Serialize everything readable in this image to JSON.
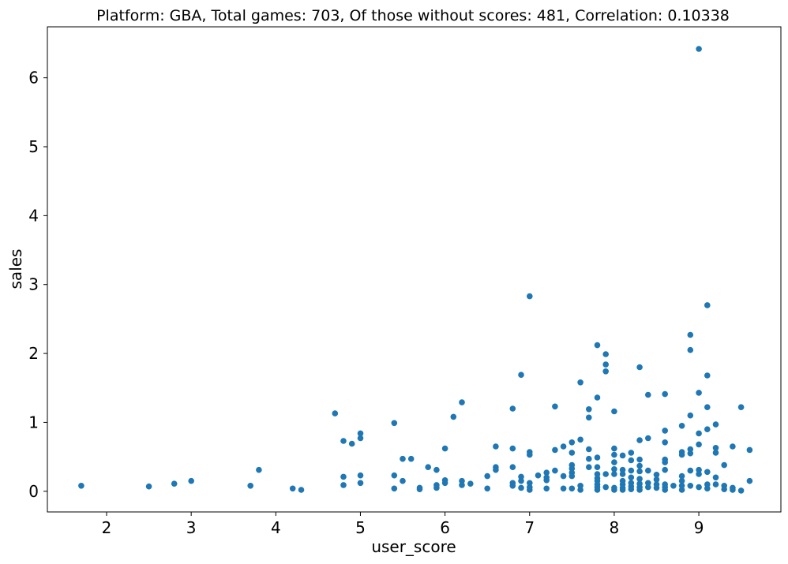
{
  "chart_data": {
    "type": "scatter",
    "title": "Platform: GBA, Total games: 703, Of those without scores: 481, Correlation: 0.10338",
    "xlabel": "user_score",
    "ylabel": "sales",
    "xlim": [
      1.3,
      9.97
    ],
    "ylim": [
      -0.3,
      6.74
    ],
    "xticks": [
      "2",
      "3",
      "4",
      "5",
      "6",
      "7",
      "8",
      "9"
    ],
    "yticks": [
      "0",
      "1",
      "2",
      "3",
      "4",
      "5",
      "6"
    ],
    "grid": false,
    "color": "#1f77b4",
    "points": [
      [
        1.7,
        0.08
      ],
      [
        2.5,
        0.07
      ],
      [
        2.8,
        0.11
      ],
      [
        3.0,
        0.15
      ],
      [
        3.7,
        0.08
      ],
      [
        3.8,
        0.31
      ],
      [
        4.2,
        0.04
      ],
      [
        4.3,
        0.02
      ],
      [
        4.7,
        1.13
      ],
      [
        4.8,
        0.73
      ],
      [
        4.8,
        0.21
      ],
      [
        4.8,
        0.09
      ],
      [
        4.9,
        0.69
      ],
      [
        5.0,
        0.84
      ],
      [
        5.0,
        0.77
      ],
      [
        5.0,
        0.23
      ],
      [
        5.0,
        0.12
      ],
      [
        5.4,
        0.99
      ],
      [
        5.4,
        0.23
      ],
      [
        5.4,
        0.04
      ],
      [
        5.5,
        0.47
      ],
      [
        5.5,
        0.15
      ],
      [
        5.6,
        0.47
      ],
      [
        5.7,
        0.05
      ],
      [
        5.7,
        0.03
      ],
      [
        5.8,
        0.35
      ],
      [
        5.9,
        0.31
      ],
      [
        5.9,
        0.09
      ],
      [
        5.9,
        0.05
      ],
      [
        6.0,
        0.62
      ],
      [
        6.0,
        0.16
      ],
      [
        6.0,
        0.12
      ],
      [
        6.1,
        1.08
      ],
      [
        6.2,
        1.29
      ],
      [
        6.2,
        0.15
      ],
      [
        6.2,
        0.09
      ],
      [
        6.3,
        0.11
      ],
      [
        6.5,
        0.22
      ],
      [
        6.5,
        0.04
      ],
      [
        6.6,
        0.65
      ],
      [
        6.6,
        0.35
      ],
      [
        6.6,
        0.31
      ],
      [
        6.8,
        1.2
      ],
      [
        6.8,
        0.62
      ],
      [
        6.8,
        0.35
      ],
      [
        6.8,
        0.12
      ],
      [
        6.8,
        0.08
      ],
      [
        6.9,
        1.69
      ],
      [
        6.9,
        0.21
      ],
      [
        6.9,
        0.15
      ],
      [
        6.9,
        0.05
      ],
      [
        7.0,
        2.83
      ],
      [
        7.0,
        0.57
      ],
      [
        7.0,
        0.53
      ],
      [
        7.0,
        0.12
      ],
      [
        7.0,
        0.06
      ],
      [
        7.0,
        0.02
      ],
      [
        7.1,
        0.23
      ],
      [
        7.2,
        0.27
      ],
      [
        7.2,
        0.2
      ],
      [
        7.2,
        0.16
      ],
      [
        7.2,
        0.04
      ],
      [
        7.3,
        1.23
      ],
      [
        7.3,
        0.6
      ],
      [
        7.3,
        0.3
      ],
      [
        7.4,
        0.65
      ],
      [
        7.4,
        0.22
      ],
      [
        7.4,
        0.04
      ],
      [
        7.5,
        0.71
      ],
      [
        7.5,
        0.56
      ],
      [
        7.5,
        0.38
      ],
      [
        7.5,
        0.33
      ],
      [
        7.5,
        0.27
      ],
      [
        7.5,
        0.22
      ],
      [
        7.5,
        0.04
      ],
      [
        7.6,
        1.58
      ],
      [
        7.6,
        0.75
      ],
      [
        7.6,
        0.08
      ],
      [
        7.6,
        0.02
      ],
      [
        7.7,
        1.19
      ],
      [
        7.7,
        1.07
      ],
      [
        7.7,
        0.61
      ],
      [
        7.7,
        0.47
      ],
      [
        7.7,
        0.35
      ],
      [
        7.8,
        2.12
      ],
      [
        7.8,
        1.36
      ],
      [
        7.8,
        0.49
      ],
      [
        7.8,
        0.35
      ],
      [
        7.8,
        0.25
      ],
      [
        7.8,
        0.19
      ],
      [
        7.8,
        0.15
      ],
      [
        7.8,
        0.1
      ],
      [
        7.8,
        0.06
      ],
      [
        7.8,
        0.02
      ],
      [
        7.9,
        1.99
      ],
      [
        7.9,
        1.84
      ],
      [
        7.9,
        1.74
      ],
      [
        7.9,
        0.25
      ],
      [
        7.9,
        0.06
      ],
      [
        8.0,
        1.16
      ],
      [
        8.0,
        0.62
      ],
      [
        8.0,
        0.53
      ],
      [
        8.0,
        0.42
      ],
      [
        8.0,
        0.32
      ],
      [
        8.0,
        0.25
      ],
      [
        8.0,
        0.05
      ],
      [
        8.0,
        0.02
      ],
      [
        8.1,
        0.52
      ],
      [
        8.1,
        0.31
      ],
      [
        8.1,
        0.25
      ],
      [
        8.1,
        0.15
      ],
      [
        8.1,
        0.1
      ],
      [
        8.1,
        0.05
      ],
      [
        8.1,
        0.02
      ],
      [
        8.2,
        0.56
      ],
      [
        8.2,
        0.45
      ],
      [
        8.2,
        0.3
      ],
      [
        8.2,
        0.2
      ],
      [
        8.2,
        0.12
      ],
      [
        8.2,
        0.07
      ],
      [
        8.2,
        0.03
      ],
      [
        8.3,
        1.8
      ],
      [
        8.3,
        0.74
      ],
      [
        8.3,
        0.46
      ],
      [
        8.3,
        0.37
      ],
      [
        8.3,
        0.29
      ],
      [
        8.3,
        0.18
      ],
      [
        8.3,
        0.11
      ],
      [
        8.3,
        0.06
      ],
      [
        8.3,
        0.02
      ],
      [
        8.4,
        1.4
      ],
      [
        8.4,
        0.77
      ],
      [
        8.4,
        0.3
      ],
      [
        8.4,
        0.12
      ],
      [
        8.4,
        0.06
      ],
      [
        8.5,
        0.24
      ],
      [
        8.5,
        0.17
      ],
      [
        8.5,
        0.1
      ],
      [
        8.5,
        0.05
      ],
      [
        8.6,
        1.41
      ],
      [
        8.6,
        0.88
      ],
      [
        8.6,
        0.71
      ],
      [
        8.6,
        0.46
      ],
      [
        8.6,
        0.42
      ],
      [
        8.6,
        0.31
      ],
      [
        8.6,
        0.1
      ],
      [
        8.6,
        0.06
      ],
      [
        8.6,
        0.02
      ],
      [
        8.7,
        0.08
      ],
      [
        8.8,
        0.95
      ],
      [
        8.8,
        0.57
      ],
      [
        8.8,
        0.53
      ],
      [
        8.8,
        0.22
      ],
      [
        8.8,
        0.15
      ],
      [
        8.8,
        0.08
      ],
      [
        8.8,
        0.02
      ],
      [
        8.9,
        2.27
      ],
      [
        8.9,
        2.05
      ],
      [
        8.9,
        1.1
      ],
      [
        8.9,
        0.61
      ],
      [
        8.9,
        0.55
      ],
      [
        8.9,
        0.3
      ],
      [
        8.9,
        0.08
      ],
      [
        9.0,
        6.42
      ],
      [
        9.0,
        1.43
      ],
      [
        9.0,
        0.84
      ],
      [
        9.0,
        0.68
      ],
      [
        9.0,
        0.31
      ],
      [
        9.0,
        0.25
      ],
      [
        9.0,
        0.06
      ],
      [
        9.1,
        2.7
      ],
      [
        9.1,
        1.68
      ],
      [
        9.1,
        1.22
      ],
      [
        9.1,
        0.9
      ],
      [
        9.1,
        0.28
      ],
      [
        9.1,
        0.1
      ],
      [
        9.1,
        0.04
      ],
      [
        9.2,
        0.97
      ],
      [
        9.2,
        0.63
      ],
      [
        9.2,
        0.56
      ],
      [
        9.2,
        0.2
      ],
      [
        9.2,
        0.1
      ],
      [
        9.3,
        0.38
      ],
      [
        9.3,
        0.08
      ],
      [
        9.3,
        0.03
      ],
      [
        9.4,
        0.65
      ],
      [
        9.4,
        0.05
      ],
      [
        9.4,
        0.02
      ],
      [
        9.5,
        1.22
      ],
      [
        9.5,
        0.01
      ],
      [
        9.6,
        0.6
      ],
      [
        9.6,
        0.15
      ]
    ]
  }
}
